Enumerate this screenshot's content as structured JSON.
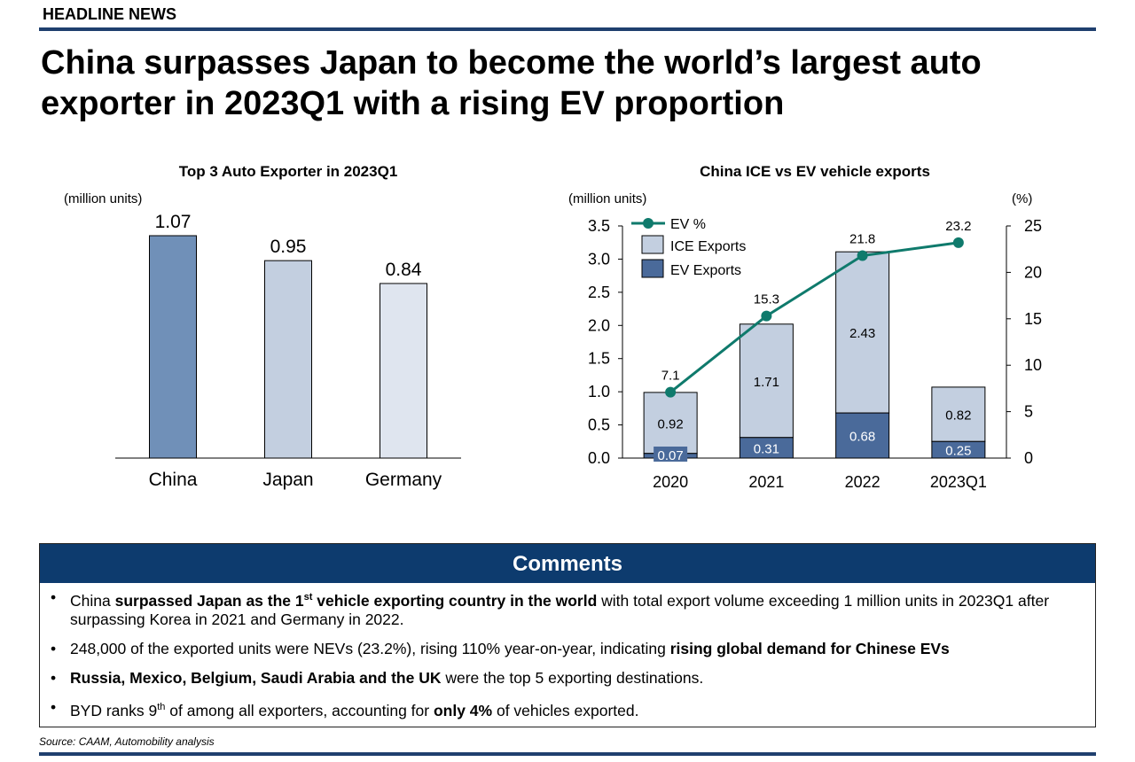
{
  "header": {
    "label": "HEADLINE NEWS",
    "title": "China surpasses Japan to become the world’s largest auto exporter in 2023Q1 with a rising EV proportion"
  },
  "chart_data": [
    {
      "type": "bar",
      "title": "Top 3 Auto Exporter in 2023Q1",
      "ylabel": "(million units)",
      "categories": [
        "China",
        "Japan",
        "Germany"
      ],
      "values": [
        1.07,
        0.95,
        0.84
      ],
      "value_labels": [
        "1.07",
        "0.95",
        "0.84"
      ],
      "colors": [
        "#7090b8",
        "#c3cfe0",
        "#dfe5ef"
      ],
      "ylim": [
        0,
        1.07
      ],
      "grid": false
    },
    {
      "type": "bar",
      "stacked": true,
      "title": "China ICE vs EV vehicle exports",
      "ylabel": "(million units)",
      "y2label": "(%)",
      "categories": [
        "2020",
        "2021",
        "2022",
        "2023Q1"
      ],
      "ylim": [
        0,
        3.5
      ],
      "yticks": [
        "0.0",
        "0.5",
        "1.0",
        "1.5",
        "2.0",
        "2.5",
        "3.0",
        "3.5"
      ],
      "y2lim": [
        0,
        25
      ],
      "y2ticks": [
        "0",
        "5",
        "10",
        "15",
        "20",
        "25"
      ],
      "legend": "top-left",
      "grid": false,
      "series": [
        {
          "name": "EV Exports",
          "kind": "bar",
          "values": [
            0.07,
            0.31,
            0.68,
            0.25
          ],
          "labels": [
            "0.07",
            "0.31",
            "0.68",
            "0.25"
          ],
          "color": "#4a6a9a"
        },
        {
          "name": "ICE Exports",
          "kind": "bar",
          "values": [
            0.92,
            1.71,
            2.43,
            0.82
          ],
          "labels": [
            "0.92",
            "1.71",
            "2.43",
            "0.82"
          ],
          "color": "#c3cfe0"
        },
        {
          "name": "EV %",
          "kind": "line",
          "axis": "y2",
          "values": [
            7.1,
            15.3,
            21.8,
            23.2
          ],
          "labels": [
            "7.1",
            "15.3",
            "21.8",
            "23.2"
          ],
          "color": "#0f7a6c"
        }
      ]
    }
  ],
  "comments": {
    "title": "Comments",
    "items": [
      {
        "parts": [
          {
            "t": "China "
          },
          {
            "t": "surpassed Japan as the 1",
            "b": true
          },
          {
            "t": "st",
            "b": true,
            "sup": true
          },
          {
            "t": " vehicle exporting country in the world",
            "b": true
          },
          {
            "t": " with total export volume exceeding 1 million units in 2023Q1 after surpassing Korea in 2021 and Germany in 2022."
          }
        ]
      },
      {
        "parts": [
          {
            "t": "248,000 of the exported units were NEVs (23.2%), rising 110% year-on-year, indicating "
          },
          {
            "t": "rising global demand for Chinese EVs",
            "b": true
          }
        ]
      },
      {
        "parts": [
          {
            "t": "Russia, Mexico,  Belgium, Saudi Arabia and the UK",
            "b": true
          },
          {
            "t": " were the top 5 exporting destinations."
          }
        ]
      },
      {
        "parts": [
          {
            "t": "BYD ranks 9"
          },
          {
            "t": "th",
            "sup": true
          },
          {
            "t": " of among all exporters, accounting for "
          },
          {
            "t": "only 4%",
            "b": true
          },
          {
            "t": " of vehicles exported."
          }
        ]
      }
    ]
  },
  "source": "Source: CAAM, Automobility analysis"
}
